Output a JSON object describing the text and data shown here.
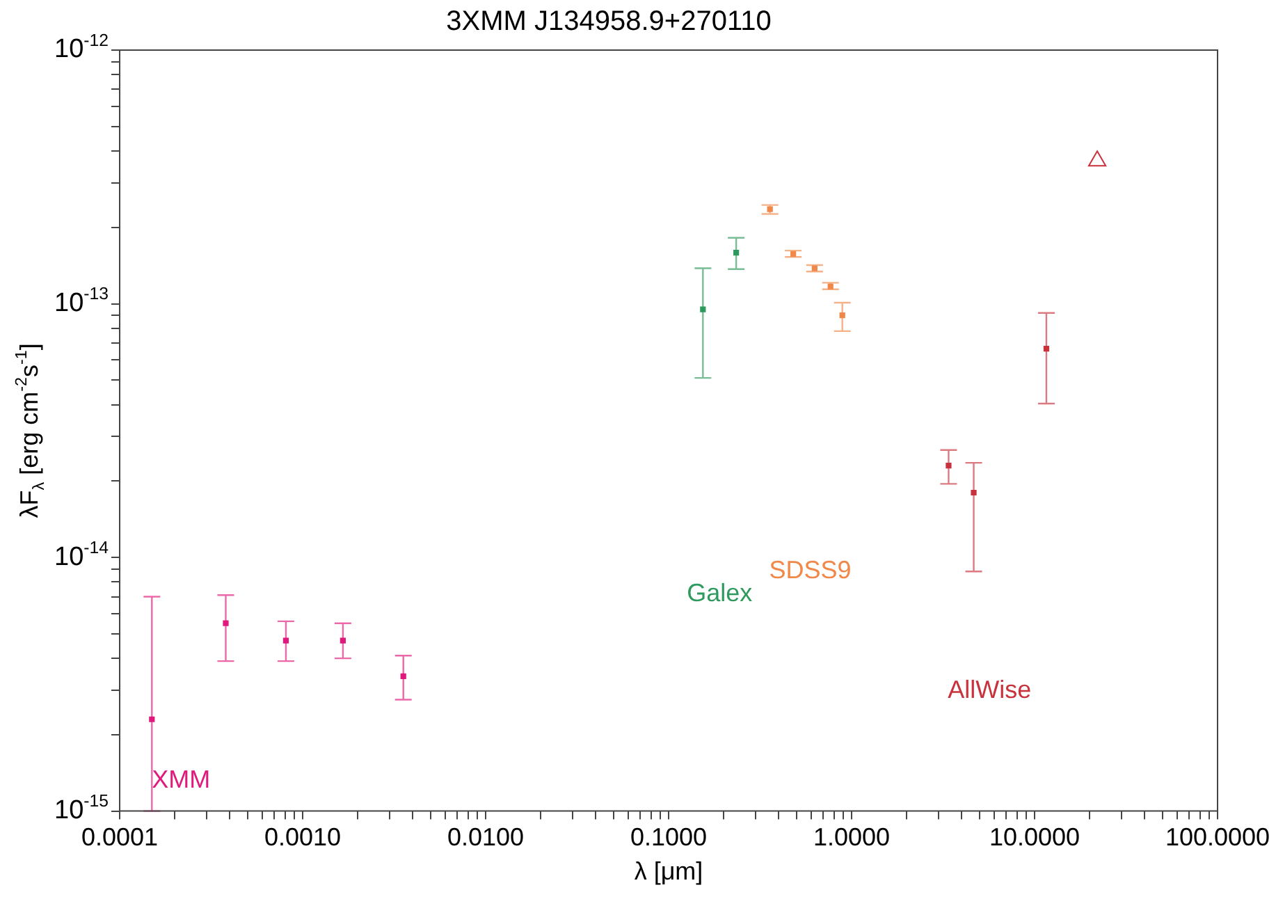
{
  "chart_data": {
    "type": "scatter",
    "title": "3XMM J134958.9+270110",
    "xlabel": "λ [μm]",
    "ylabel": "λF$_{λ}$ [erg cm$^{-2}$s$^{-1}$]",
    "log": "xy",
    "grid": false,
    "legend": false,
    "marker": "square",
    "xlim": [
      0.0001,
      100
    ],
    "ylim": [
      1e-15,
      1e-12
    ],
    "xticks": [
      {
        "value": 0.0001,
        "label": "0.0001"
      },
      {
        "value": 0.0002,
        "label": null
      },
      {
        "value": 0.0003,
        "label": null
      },
      {
        "value": 0.0004,
        "label": null
      },
      {
        "value": 0.0005,
        "label": null
      },
      {
        "value": 0.0006,
        "label": null
      },
      {
        "value": 0.0007,
        "label": null
      },
      {
        "value": 0.0008,
        "label": null
      },
      {
        "value": 0.0009,
        "label": null
      },
      {
        "value": 0.001,
        "label": "0.0010"
      },
      {
        "value": 0.002,
        "label": null
      },
      {
        "value": 0.003,
        "label": null
      },
      {
        "value": 0.004,
        "label": null
      },
      {
        "value": 0.005,
        "label": null
      },
      {
        "value": 0.006,
        "label": null
      },
      {
        "value": 0.007,
        "label": null
      },
      {
        "value": 0.008,
        "label": null
      },
      {
        "value": 0.009,
        "label": null
      },
      {
        "value": 0.01,
        "label": "0.0100"
      },
      {
        "value": 0.02,
        "label": null
      },
      {
        "value": 0.03,
        "label": null
      },
      {
        "value": 0.04,
        "label": null
      },
      {
        "value": 0.05,
        "label": null
      },
      {
        "value": 0.06,
        "label": null
      },
      {
        "value": 0.07,
        "label": null
      },
      {
        "value": 0.08,
        "label": null
      },
      {
        "value": 0.09,
        "label": null
      },
      {
        "value": 0.1,
        "label": "0.1000"
      },
      {
        "value": 0.2,
        "label": null
      },
      {
        "value": 0.3,
        "label": null
      },
      {
        "value": 0.4,
        "label": null
      },
      {
        "value": 0.5,
        "label": null
      },
      {
        "value": 0.6,
        "label": null
      },
      {
        "value": 0.7,
        "label": null
      },
      {
        "value": 0.8,
        "label": null
      },
      {
        "value": 0.9,
        "label": null
      },
      {
        "value": 1,
        "label": "1.0000"
      },
      {
        "value": 2,
        "label": null
      },
      {
        "value": 3,
        "label": null
      },
      {
        "value": 4,
        "label": null
      },
      {
        "value": 5,
        "label": null
      },
      {
        "value": 6,
        "label": null
      },
      {
        "value": 7,
        "label": null
      },
      {
        "value": 8,
        "label": null
      },
      {
        "value": 9,
        "label": null
      },
      {
        "value": 10,
        "label": "10.0000"
      },
      {
        "value": 20,
        "label": null
      },
      {
        "value": 30,
        "label": null
      },
      {
        "value": 40,
        "label": null
      },
      {
        "value": 50,
        "label": null
      },
      {
        "value": 60,
        "label": null
      },
      {
        "value": 70,
        "label": null
      },
      {
        "value": 80,
        "label": null
      },
      {
        "value": 90,
        "label": null
      },
      {
        "value": 100,
        "label": "100.0000"
      }
    ],
    "yticks": [
      {
        "value": 1e-15,
        "label": "10$^{-15}$"
      },
      {
        "value": 2e-15,
        "label": null
      },
      {
        "value": 3e-15,
        "label": null
      },
      {
        "value": 4e-15,
        "label": null
      },
      {
        "value": 5e-15,
        "label": null
      },
      {
        "value": 6e-15,
        "label": null
      },
      {
        "value": 7e-15,
        "label": null
      },
      {
        "value": 8e-15,
        "label": null
      },
      {
        "value": 9e-15,
        "label": null
      },
      {
        "value": 1e-14,
        "label": "10$^{-14}$"
      },
      {
        "value": 2e-14,
        "label": null
      },
      {
        "value": 3e-14,
        "label": null
      },
      {
        "value": 4e-14,
        "label": null
      },
      {
        "value": 5e-14,
        "label": null
      },
      {
        "value": 6e-14,
        "label": null
      },
      {
        "value": 7e-14,
        "label": null
      },
      {
        "value": 8e-14,
        "label": null
      },
      {
        "value": 9e-14,
        "label": null
      },
      {
        "value": 1e-13,
        "label": "10$^{-13}$"
      },
      {
        "value": 2e-13,
        "label": null
      },
      {
        "value": 3e-13,
        "label": null
      },
      {
        "value": 4e-13,
        "label": null
      },
      {
        "value": 5e-13,
        "label": null
      },
      {
        "value": 6e-13,
        "label": null
      },
      {
        "value": 7e-13,
        "label": null
      },
      {
        "value": 8e-13,
        "label": null
      },
      {
        "value": 9e-13,
        "label": null
      },
      {
        "value": 1e-12,
        "label": "10$^{-12}$"
      }
    ],
    "series": [
      {
        "name": "XMM",
        "color": "#e0197d",
        "x": [
          0.00015,
          0.00038,
          0.00081,
          0.00166,
          0.00355
        ],
        "values": [
          2.3e-15,
          5.5e-15,
          4.7e-15,
          4.7e-15,
          3.4e-15
        ],
        "errors": [
          [
            1e-15,
            7e-15
          ],
          [
            3.9e-15,
            7.1e-15
          ],
          [
            3.9e-15,
            5.6e-15
          ],
          [
            4e-15,
            5.5e-15
          ],
          [
            2.75e-15,
            4.1e-15
          ]
        ]
      },
      {
        "name": "Galex",
        "color": "#2e9a5e",
        "x": [
          0.154,
          0.234
        ],
        "values": [
          9.5e-14,
          1.59e-13
        ],
        "errors": [
          [
            5.1e-14,
            1.38e-13
          ],
          [
            1.37e-13,
            1.82e-13
          ]
        ]
      },
      {
        "name": "SDSS9",
        "color": "#f0884a",
        "x": [
          0.358,
          0.48,
          0.628,
          0.767,
          0.89
        ],
        "values": [
          2.36e-13,
          1.57e-13,
          1.38e-13,
          1.17e-13,
          9e-14
        ],
        "errors": [
          [
            2.26e-13,
            2.45e-13
          ],
          [
            1.53e-13,
            1.62e-13
          ],
          [
            1.34e-13,
            1.42e-13
          ],
          [
            1.14e-13,
            1.21e-13
          ],
          [
            7.8e-14,
            1.01e-13
          ]
        ]
      },
      {
        "name": "AllWise",
        "color": "#c8323c",
        "x": [
          3.39,
          4.65,
          11.6
        ],
        "values": [
          2.3e-14,
          1.8e-14,
          6.65e-14
        ],
        "errors": [
          [
            1.95e-14,
            2.65e-14
          ],
          [
            8.8e-15,
            2.36e-14
          ],
          [
            4.04e-14,
            9.2e-14
          ]
        ]
      },
      {
        "color": "#c8323c",
        "x": [
          22
        ],
        "values": [
          3.66e-13
        ],
        "marker": "triangle"
      }
    ]
  }
}
